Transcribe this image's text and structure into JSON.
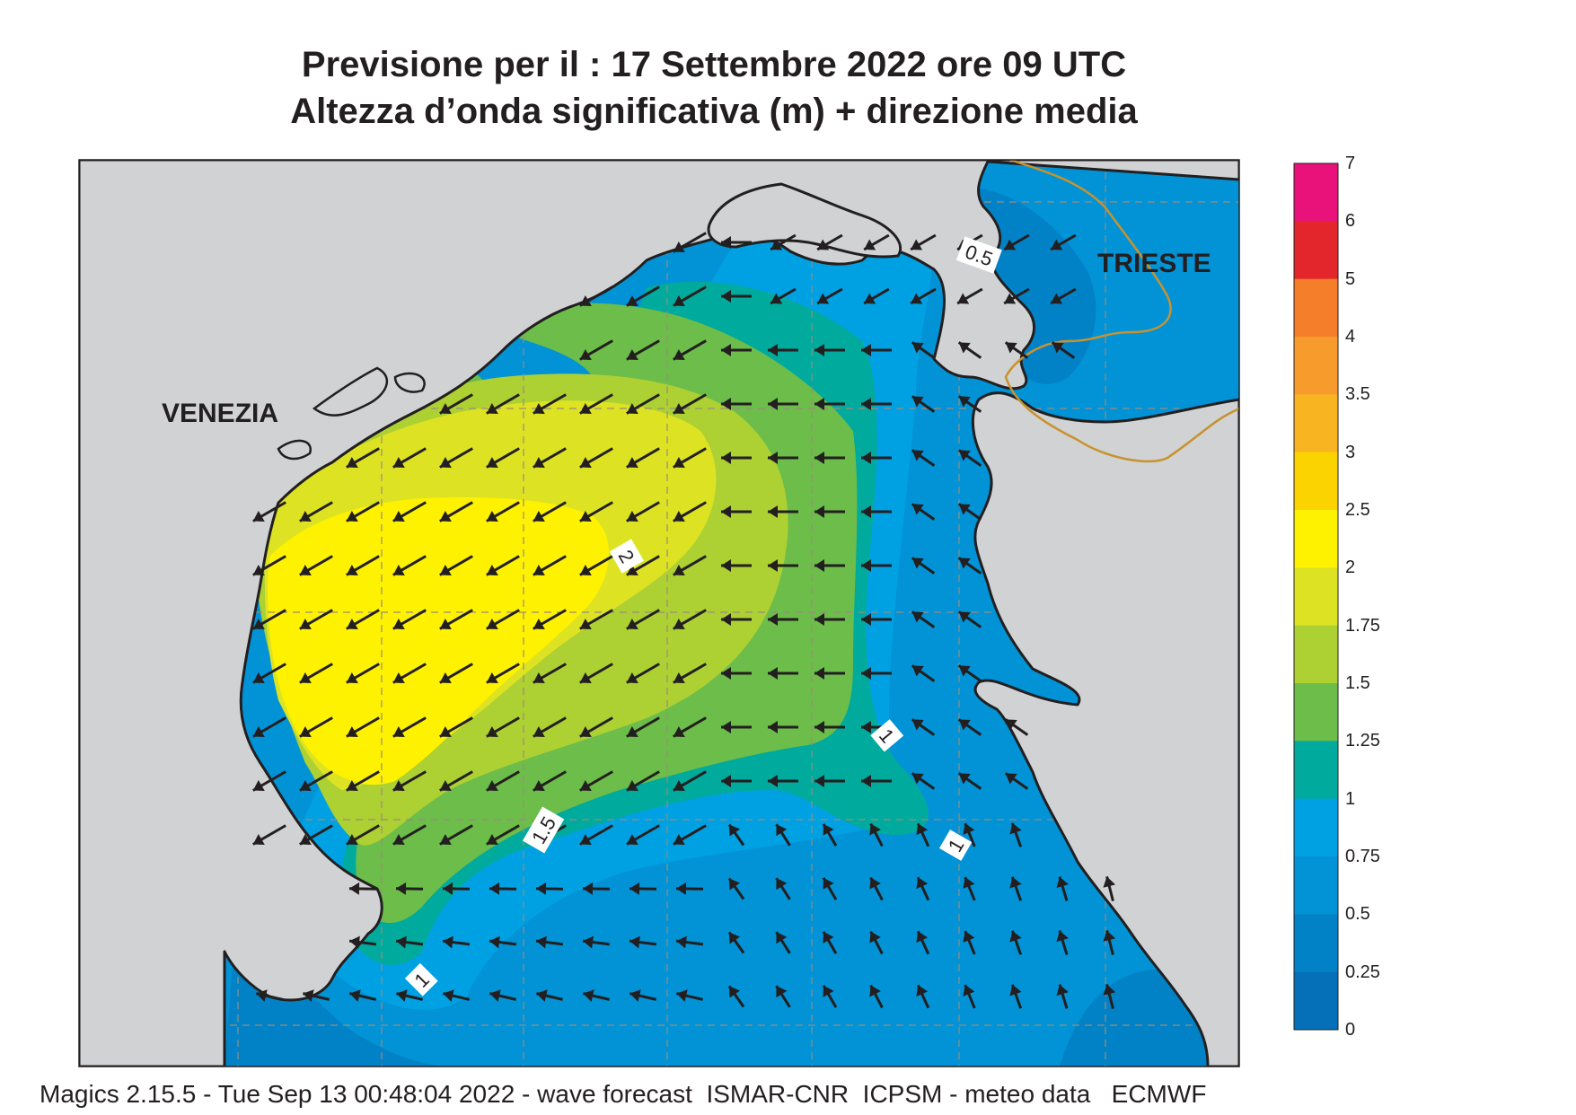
{
  "title": {
    "line1": "Previsione per il  :  17 Settembre 2022   ore 09 UTC",
    "line2": "Altezza d’onda significativa (m) + direzione media"
  },
  "map": {
    "cities": [
      "VENEZIA",
      "TRIESTE"
    ],
    "contour_labels": [
      "0.5",
      "2",
      "1",
      "1.5",
      "1",
      "1"
    ]
  },
  "legend": {
    "levels": [
      "7",
      "6",
      "5",
      "4",
      "3.5",
      "3",
      "2.5",
      "2",
      "1.75",
      "1.5",
      "1.25",
      "1",
      "0.75",
      "0.5",
      "0.25",
      "0"
    ],
    "colors": [
      "#e8127a",
      "#e3262b",
      "#f47e2a",
      "#f79b2c",
      "#f9b521",
      "#fbd400",
      "#fef200",
      "#dde323",
      "#add033",
      "#6cbd49",
      "#00aa9c",
      "#00a1e2",
      "#0193d6",
      "#0282c6",
      "#0570b7"
    ]
  },
  "colors": {
    "land": "#d0d2d3",
    "border": "#c8922f",
    "arrow": "#231f20"
  },
  "footer": "Magics 2.15.5 - Tue Sep 13 00:48:04 2022 - wave forecast  ISMAR-CNR  ICPSM - meteo data   ECMWF"
}
